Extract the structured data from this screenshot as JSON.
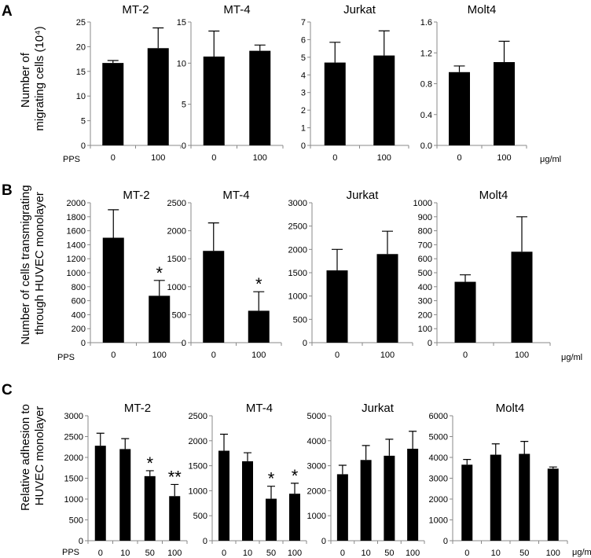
{
  "panel_labels": {
    "A": "A",
    "B": "B",
    "C": "C"
  },
  "row_ylabels": {
    "A": [
      "Number of",
      "migrating cells (10⁴)"
    ],
    "B": [
      "Number of cells transmigrating",
      "through HUVEC monolayer"
    ],
    "C": [
      "Relative adhesion to",
      "HUVEC monolayer"
    ]
  },
  "pps_label": "PPS",
  "unit_label": "μg/ml",
  "chart_data": [
    {
      "id": "A1",
      "type": "bar",
      "title": "MT-2",
      "categories": [
        "0",
        "100"
      ],
      "values": [
        16.7,
        19.7
      ],
      "errors": [
        0.5,
        4.1
      ],
      "ylim": [
        0,
        25
      ],
      "yticks": [
        "0",
        "5",
        "10",
        "15",
        "20",
        "25"
      ],
      "sig": [
        "",
        ""
      ]
    },
    {
      "id": "A2",
      "type": "bar",
      "title": "MT-4",
      "categories": [
        "0",
        "100"
      ],
      "values": [
        10.8,
        11.5
      ],
      "errors": [
        3.1,
        0.7
      ],
      "ylim": [
        0,
        15
      ],
      "yticks": [
        "0",
        "5",
        "10",
        "15"
      ],
      "sig": [
        "",
        ""
      ]
    },
    {
      "id": "A3",
      "type": "bar",
      "title": "Jurkat",
      "categories": [
        "0",
        "100"
      ],
      "values": [
        4.7,
        5.1
      ],
      "errors": [
        1.15,
        1.4
      ],
      "ylim": [
        0,
        7
      ],
      "yticks": [
        "0",
        "1",
        "2",
        "3",
        "4",
        "5",
        "6",
        "7"
      ],
      "sig": [
        "",
        ""
      ]
    },
    {
      "id": "A4",
      "type": "bar",
      "title": "Molt4",
      "categories": [
        "0",
        "100"
      ],
      "values": [
        0.95,
        1.08
      ],
      "errors": [
        0.08,
        0.27
      ],
      "ylim": [
        0,
        1.6
      ],
      "yticks": [
        "0.0",
        "0.4",
        "0.8",
        "1.2",
        "1.6"
      ],
      "sig": [
        "",
        ""
      ]
    },
    {
      "id": "B1",
      "type": "bar",
      "title": "MT-2",
      "categories": [
        "0",
        "100"
      ],
      "values": [
        1500,
        670
      ],
      "errors": [
        400,
        220
      ],
      "ylim": [
        0,
        2000
      ],
      "yticks": [
        "0",
        "200",
        "400",
        "600",
        "800",
        "1000",
        "1200",
        "1400",
        "1600",
        "1800",
        "2000"
      ],
      "sig": [
        "",
        "*"
      ]
    },
    {
      "id": "B2",
      "type": "bar",
      "title": "MT-4",
      "categories": [
        "0",
        "100"
      ],
      "values": [
        1640,
        570
      ],
      "errors": [
        500,
        340
      ],
      "ylim": [
        0,
        2500
      ],
      "yticks": [
        "0",
        "500",
        "1000",
        "1500",
        "2000",
        "2500"
      ],
      "sig": [
        "",
        "*"
      ]
    },
    {
      "id": "B3",
      "type": "bar",
      "title": "Jurkat",
      "categories": [
        "0",
        "100"
      ],
      "values": [
        1550,
        1900
      ],
      "errors": [
        450,
        490
      ],
      "ylim": [
        0,
        3000
      ],
      "yticks": [
        "0",
        "500",
        "1000",
        "1500",
        "2000",
        "2500",
        "3000"
      ],
      "sig": [
        "",
        ""
      ]
    },
    {
      "id": "B4",
      "type": "bar",
      "title": "Molt4",
      "categories": [
        "0",
        "100"
      ],
      "values": [
        435,
        650
      ],
      "errors": [
        50,
        250
      ],
      "ylim": [
        0,
        1000
      ],
      "yticks": [
        "0",
        "100",
        "200",
        "300",
        "400",
        "500",
        "600",
        "700",
        "800",
        "900",
        "1000"
      ],
      "sig": [
        "",
        ""
      ]
    },
    {
      "id": "C1",
      "type": "bar",
      "title": "MT-2",
      "categories": [
        "0",
        "10",
        "50",
        "100"
      ],
      "values": [
        2280,
        2200,
        1550,
        1070
      ],
      "errors": [
        300,
        250,
        130,
        280
      ],
      "ylim": [
        0,
        3000
      ],
      "yticks": [
        "0",
        "500",
        "1000",
        "1500",
        "2000",
        "2500",
        "3000"
      ],
      "sig": [
        "",
        "",
        "*",
        "**"
      ]
    },
    {
      "id": "C2",
      "type": "bar",
      "title": "MT-4",
      "categories": [
        "0",
        "10",
        "50",
        "100"
      ],
      "values": [
        1800,
        1590,
        840,
        940
      ],
      "errors": [
        330,
        170,
        250,
        210
      ],
      "ylim": [
        0,
        2500
      ],
      "yticks": [
        "0",
        "500",
        "1000",
        "1500",
        "2000",
        "2500"
      ],
      "sig": [
        "",
        "",
        "*",
        "*"
      ]
    },
    {
      "id": "C3",
      "type": "bar",
      "title": "Jurkat",
      "categories": [
        "0",
        "10",
        "50",
        "100"
      ],
      "values": [
        2660,
        3230,
        3400,
        3680
      ],
      "errors": [
        360,
        580,
        660,
        700
      ],
      "ylim": [
        0,
        5000
      ],
      "yticks": [
        "0",
        "1000",
        "2000",
        "3000",
        "4000",
        "5000"
      ],
      "sig": [
        "",
        "",
        "",
        ""
      ]
    },
    {
      "id": "C4",
      "type": "bar",
      "title": "Molt4",
      "categories": [
        "0",
        "10",
        "50",
        "100"
      ],
      "values": [
        3650,
        4130,
        4170,
        3460
      ],
      "errors": [
        250,
        520,
        600,
        80
      ],
      "ylim": [
        0,
        6000
      ],
      "yticks": [
        "0",
        "1000",
        "2000",
        "3000",
        "4000",
        "5000",
        "6000"
      ],
      "sig": [
        "",
        "",
        "",
        ""
      ]
    }
  ]
}
